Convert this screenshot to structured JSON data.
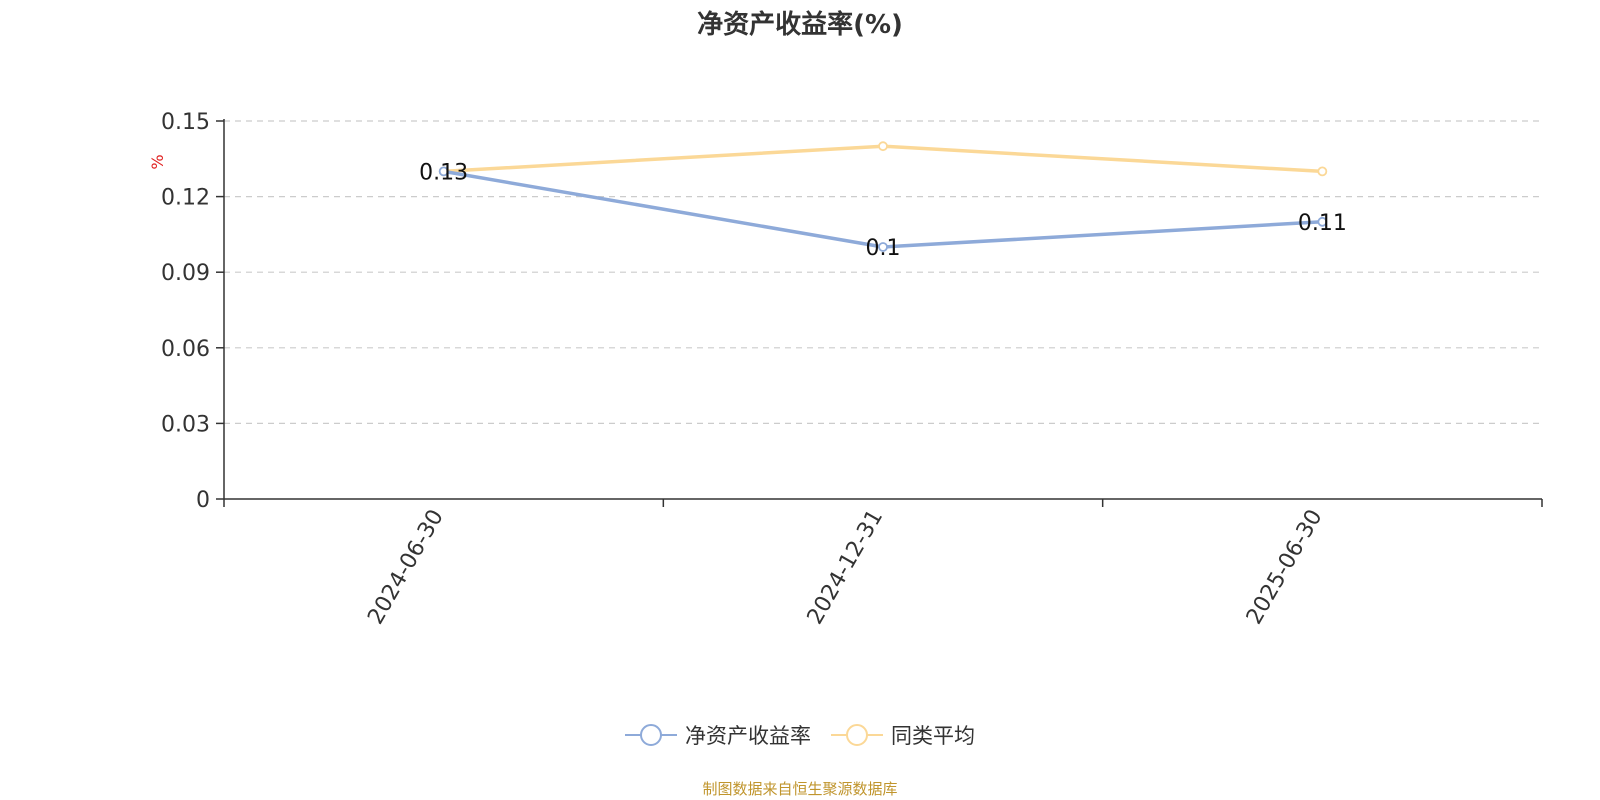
{
  "chart_data": {
    "type": "line",
    "title": "净资产收益率(%)",
    "ylabel": "%",
    "xlabel": "",
    "categories": [
      "2024-06-30",
      "2024-12-31",
      "2025-06-30"
    ],
    "ylim": [
      0,
      0.15
    ],
    "yticks": [
      "0",
      "0.03",
      "0.06",
      "0.09",
      "0.12",
      "0.15"
    ],
    "grid": true,
    "legend_position": "bottom",
    "series": [
      {
        "name": "净资产收益率",
        "values": [
          0.13,
          0.1,
          0.11
        ],
        "labels": [
          "0.13",
          "0.1",
          "0.11"
        ],
        "color": "#8eaad9"
      },
      {
        "name": "同类平均",
        "values": [
          0.13,
          0.14,
          0.13
        ],
        "color": "#fbd897"
      }
    ]
  },
  "source_note": "制图数据来自恒生聚源数据库"
}
